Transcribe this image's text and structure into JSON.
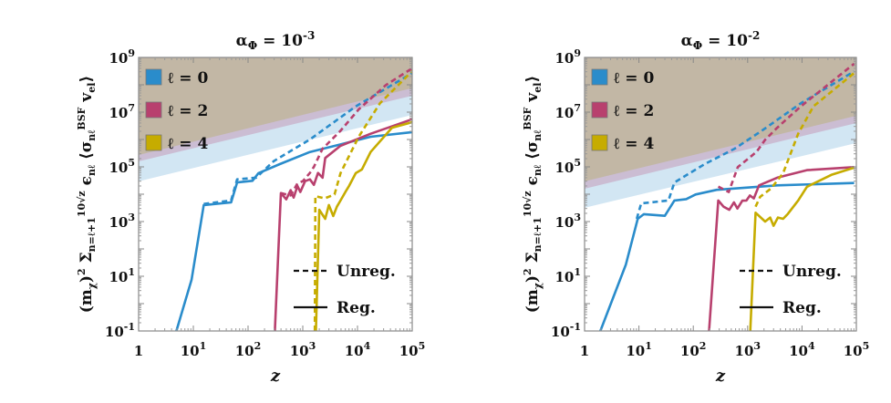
{
  "chart_data": [
    {
      "type": "line",
      "title": "α_Φ = 10^-3",
      "title_parts": {
        "alpha": "α",
        "sub": "Φ",
        "eq": " = 10",
        "exp": "−3"
      },
      "xlabel": "z",
      "ylabel": "(m_χ)^2 Σ_{n=ℓ+1}^{10√z} ϵ_{nℓ} ⟨σ_{nℓ}^{BSF} v_el⟩",
      "xscale": "log",
      "yscale": "log",
      "xlim": [
        1,
        100000
      ],
      "ylim": [
        0.1,
        1000000000
      ],
      "x_ticks": [
        "1",
        "10^1",
        "10^2",
        "10^3",
        "10^4",
        "10^5"
      ],
      "y_ticks": [
        "10^-1",
        "10^1",
        "10^3",
        "10^5",
        "10^7",
        "10^9"
      ],
      "legend": [
        "ℓ = 0",
        "ℓ = 2",
        "ℓ = 4"
      ],
      "style_legend": [
        "Unreg.",
        "Reg."
      ],
      "legend_position": "top-left",
      "bands": [
        {
          "color": "#d2e6f3",
          "lower_edge": [
            [
              1,
              29500
            ],
            [
              100000,
              7900000
            ]
          ]
        },
        {
          "color": "#cbbdd3",
          "lower_edge": [
            [
              1,
              158000
            ],
            [
              100000,
              40000000
            ]
          ]
        },
        {
          "color": "#c2b7a5",
          "lower_edge": [
            [
              1,
              270000
            ],
            [
              100000,
              76000000
            ]
          ]
        }
      ],
      "series": [
        {
          "name": "ℓ = 0",
          "style": "Reg.",
          "color": "#2a8ccb",
          "points": [
            [
              4.9,
              0.1
            ],
            [
              9.3,
              7.6
            ],
            [
              15.5,
              4000
            ],
            [
              49,
              5000
            ],
            [
              63,
              27000
            ],
            [
              120,
              31000
            ],
            [
              155,
              59000
            ],
            [
              380,
              126000
            ],
            [
              1350,
              350000
            ],
            [
              4900,
              660000
            ],
            [
              17400,
              1260000
            ],
            [
              100000,
              1860000
            ]
          ]
        },
        {
          "name": "ℓ = 0",
          "style": "Unreg.",
          "color": "#2a8ccb",
          "points": [
            [
              15.5,
              4400
            ],
            [
              49,
              5900
            ],
            [
              63,
              35000
            ],
            [
              140,
              40000
            ],
            [
              295,
              162000
            ],
            [
              1350,
              1000000
            ],
            [
              9300,
              16200000
            ],
            [
              100000,
              269000000
            ]
          ]
        },
        {
          "name": "ℓ = 2",
          "style": "Reg.",
          "color": "#b8406e",
          "points": [
            [
              309,
              0.1
            ],
            [
              398,
              11000
            ],
            [
              500,
              6500
            ],
            [
              600,
              14000
            ],
            [
              680,
              7500
            ],
            [
              800,
              20000
            ],
            [
              900,
              12000
            ],
            [
              1100,
              30000
            ],
            [
              1350,
              35000
            ],
            [
              1600,
              22000
            ],
            [
              1900,
              60000
            ],
            [
              2300,
              40000
            ],
            [
              2570,
              210000
            ],
            [
              4900,
              590000
            ],
            [
              17400,
              1620000
            ],
            [
              100000,
              5500000
            ]
          ]
        },
        {
          "name": "ℓ = 2",
          "style": "Unreg.",
          "color": "#b8406e",
          "points": [
            [
              398,
              11000
            ],
            [
              600,
              9000
            ],
            [
              800,
              25000
            ],
            [
              1000,
              30000
            ],
            [
              1350,
              60000
            ],
            [
              1600,
              100000
            ],
            [
              2300,
              460000
            ],
            [
              4900,
              2090000
            ],
            [
              10500,
              12600000
            ],
            [
              33000,
              98000000
            ],
            [
              100000,
              400000000
            ]
          ]
        },
        {
          "name": "ℓ = 4",
          "style": "Reg.",
          "color": "#c6ac00",
          "points": [
            [
              1740,
              0.1
            ],
            [
              2000,
              2700
            ],
            [
              2570,
              1260
            ],
            [
              3000,
              4000
            ],
            [
              3600,
              1600
            ],
            [
              4200,
              3500
            ],
            [
              4900,
              5900
            ],
            [
              6000,
              12000
            ],
            [
              7000,
              20000
            ],
            [
              9300,
              59000
            ],
            [
              12000,
              80000
            ],
            [
              17400,
              350000
            ],
            [
              42700,
              2700000
            ],
            [
              100000,
              4300000
            ]
          ]
        },
        {
          "name": "ℓ = 4",
          "style": "Unreg.",
          "color": "#c6ac00",
          "points": [
            [
              1660,
              0.1
            ],
            [
              1700,
              8500
            ],
            [
              2500,
              7000
            ],
            [
              3800,
              9800
            ],
            [
              4900,
              59000
            ],
            [
              10500,
              1260000
            ],
            [
              25700,
              21000000
            ],
            [
              49000,
              76000000
            ],
            [
              100000,
              316000000
            ]
          ]
        }
      ]
    },
    {
      "type": "line",
      "title": "α_Φ = 10^-2",
      "title_parts": {
        "alpha": "α",
        "sub": "Φ",
        "eq": " = 10",
        "exp": "−2"
      },
      "xlabel": "z",
      "ylabel": "(m_χ)^2 Σ_{n=ℓ+1}^{10√z} ϵ_{nℓ} ⟨σ_{nℓ}^{BSF} v_el⟩",
      "xscale": "log",
      "yscale": "log",
      "xlim": [
        1,
        100000
      ],
      "ylim": [
        0.1,
        1000000000
      ],
      "x_ticks": [
        "1",
        "10^1",
        "10^2",
        "10^3",
        "10^4",
        "10^5"
      ],
      "y_ticks": [
        "10^-1",
        "10^1",
        "10^3",
        "10^5",
        "10^7",
        "10^9"
      ],
      "legend": [
        "ℓ = 0",
        "ℓ = 2",
        "ℓ = 4"
      ],
      "style_legend": [
        "Unreg.",
        "Reg."
      ],
      "legend_position": "top-left",
      "bands": [
        {
          "color": "#d2e6f3",
          "lower_edge": [
            [
              1,
              3200
            ],
            [
              100000,
              740000
            ]
          ]
        },
        {
          "color": "#cbbdd3",
          "lower_edge": [
            [
              1,
              15800
            ],
            [
              100000,
              4000000
            ]
          ]
        },
        {
          "color": "#c2b7a5",
          "lower_edge": [
            [
              1,
              29500
            ],
            [
              100000,
              7400000
            ]
          ]
        }
      ],
      "series": [
        {
          "name": "ℓ = 0",
          "style": "Reg.",
          "color": "#2a8ccb",
          "points": [
            [
              1.95,
              0.1
            ],
            [
              5.75,
              27
            ],
            [
              9.5,
              1260
            ],
            [
              12.3,
              1860
            ],
            [
              30,
              1620
            ],
            [
              45,
              5900
            ],
            [
              74,
              6600
            ],
            [
              110,
              9800
            ],
            [
              270,
              14500
            ],
            [
              3500,
              21000
            ],
            [
              91000,
              25700
            ]
          ]
        },
        {
          "name": "ℓ = 0",
          "style": "Unreg.",
          "color": "#2a8ccb",
          "points": [
            [
              9.1,
              1260
            ],
            [
              11,
              4600
            ],
            [
              35,
              5900
            ],
            [
              45,
              27000
            ],
            [
              162,
              126000
            ],
            [
              575,
              460000
            ],
            [
              1820,
              2090000
            ],
            [
              9500,
              21000000
            ],
            [
              91000,
              309000000
            ]
          ]
        },
        {
          "name": "ℓ = 2",
          "style": "Reg.",
          "color": "#b8406e",
          "points": [
            [
              195,
              0.1
            ],
            [
              288,
              5900
            ],
            [
              360,
              3500
            ],
            [
              460,
              2700
            ],
            [
              560,
              5000
            ],
            [
              650,
              3000
            ],
            [
              800,
              5800
            ],
            [
              950,
              5900
            ],
            [
              1100,
              9000
            ],
            [
              1300,
              7000
            ],
            [
              1620,
              21000
            ],
            [
              3500,
              40000
            ],
            [
              12300,
              76000
            ],
            [
              91000,
              98000
            ]
          ]
        },
        {
          "name": "ℓ = 2",
          "style": "Unreg.",
          "color": "#b8406e",
          "points": [
            [
              288,
              19000
            ],
            [
              450,
              12000
            ],
            [
              660,
              98000
            ],
            [
              1450,
              350000
            ],
            [
              2100,
              980000
            ],
            [
              3500,
              2700000
            ],
            [
              9500,
              16200000
            ],
            [
              91000,
              590000000
            ]
          ]
        },
        {
          "name": "ℓ = 4",
          "style": "Reg.",
          "color": "#c6ac00",
          "points": [
            [
              1120,
              0.1
            ],
            [
              1400,
              2100
            ],
            [
              2100,
              1000
            ],
            [
              2600,
              1400
            ],
            [
              3000,
              700
            ],
            [
              3600,
              1400
            ],
            [
              4500,
              1260
            ],
            [
              5500,
              1900
            ],
            [
              8500,
              5900
            ],
            [
              12300,
              18600
            ],
            [
              34700,
              51000
            ],
            [
              91000,
              93000
            ]
          ]
        },
        {
          "name": "ℓ = 4",
          "style": "Unreg.",
          "color": "#c6ac00",
          "points": [
            [
              1400,
              3500
            ],
            [
              1700,
              8000
            ],
            [
              2700,
              16200
            ],
            [
              4500,
              59000
            ],
            [
              8500,
              1620000
            ],
            [
              16200,
              16200000
            ],
            [
              91000,
              269000000
            ]
          ]
        }
      ]
    }
  ]
}
